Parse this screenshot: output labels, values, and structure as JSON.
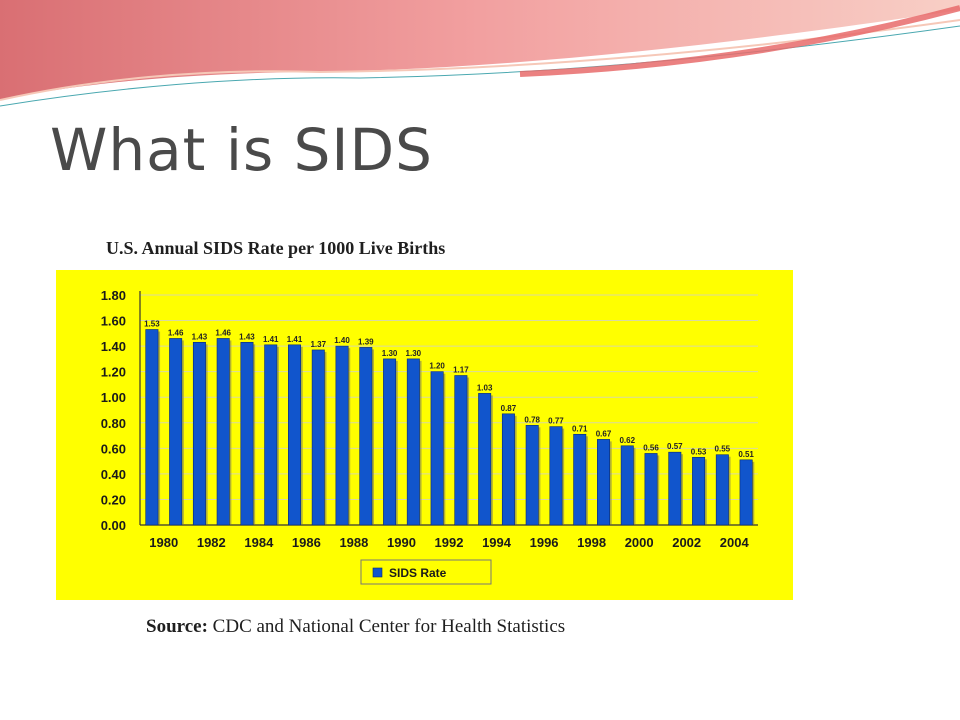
{
  "slide": {
    "title": "What is SIDS",
    "source_prefix": "Source:",
    "source_text": "CDC and National Center for Health Statistics"
  },
  "colors": {
    "panel_background": "#ffff00",
    "bar_fill": "#1155cc",
    "title_text": "#4a4a4a",
    "banner_pink": "#e8898c"
  },
  "chart_data": {
    "type": "bar",
    "title": "U.S. Annual SIDS Rate per 1000 Live Births",
    "xlabel": "",
    "ylabel": "",
    "ylim": [
      0,
      1.8
    ],
    "yticks": [
      "0.00",
      "0.20",
      "0.40",
      "0.60",
      "0.80",
      "1.00",
      "1.20",
      "1.40",
      "1.60",
      "1.80"
    ],
    "categories": [
      "1980",
      "1981",
      "1982",
      "1983",
      "1984",
      "1985",
      "1986",
      "1987",
      "1988",
      "1989",
      "1990",
      "1991",
      "1992",
      "1993",
      "1994",
      "1995",
      "1996",
      "1997",
      "1998",
      "1999",
      "2000",
      "2001",
      "2002",
      "2003",
      "2004",
      "2005"
    ],
    "xtick_labels": [
      "1980",
      "1982",
      "1984",
      "1986",
      "1988",
      "1990",
      "1992",
      "1994",
      "1996",
      "1998",
      "2000",
      "2002",
      "2004"
    ],
    "series": [
      {
        "name": "SIDS Rate",
        "values": [
          1.53,
          1.46,
          1.43,
          1.46,
          1.43,
          1.41,
          1.41,
          1.37,
          1.4,
          1.39,
          1.3,
          1.3,
          1.2,
          1.17,
          1.03,
          0.87,
          0.78,
          0.77,
          0.71,
          0.67,
          0.62,
          0.56,
          0.57,
          0.53,
          0.55,
          0.51
        ],
        "labels": [
          "1.53",
          "1.46",
          "1.43",
          "1.46",
          "1.43",
          "1.41",
          "1.41",
          "1.37",
          "1.40",
          "1.39",
          "1.30",
          "1.30",
          "1.20",
          "1.17",
          "1.03",
          "0.87",
          "0.78",
          "0.77",
          "0.71",
          "0.67",
          "0.62",
          "0.56",
          "0.57",
          "0.53",
          "0.55",
          "0.51"
        ]
      }
    ],
    "grid": true,
    "legend": "bottom"
  }
}
